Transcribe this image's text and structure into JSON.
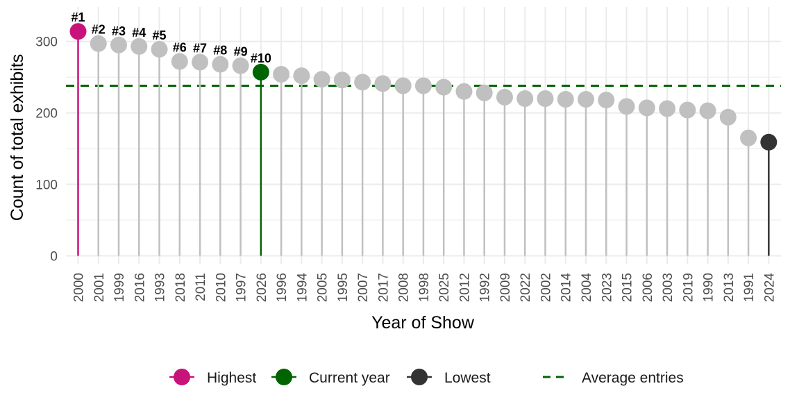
{
  "chart_data": {
    "type": "lollipop",
    "xlabel": "Year of Show",
    "ylabel": "Count of total exhibits",
    "ylim": [
      0,
      320
    ],
    "yticks": [
      0,
      100,
      200,
      300
    ],
    "average": 238,
    "categories": [
      "2000",
      "2001",
      "1999",
      "2016",
      "1993",
      "2018",
      "2011",
      "2010",
      "1997",
      "2026",
      "1996",
      "1994",
      "2005",
      "1995",
      "2007",
      "2017",
      "2008",
      "1998",
      "2025",
      "2012",
      "1992",
      "2009",
      "2022",
      "2002",
      "2014",
      "2004",
      "2023",
      "2015",
      "2006",
      "2003",
      "2019",
      "1990",
      "2013",
      "1991",
      "2024"
    ],
    "values": [
      314,
      297,
      295,
      293,
      289,
      272,
      271,
      268,
      266,
      257,
      254,
      252,
      247,
      246,
      243,
      241,
      238,
      238,
      236,
      230,
      228,
      222,
      220,
      220,
      219,
      219,
      218,
      209,
      207,
      206,
      204,
      203,
      194,
      165,
      159
    ],
    "ranks": [
      "#1",
      "#2",
      "#3",
      "#4",
      "#5",
      "#6",
      "#7",
      "#8",
      "#9",
      "#10"
    ],
    "highlights": {
      "highest": "2000",
      "current": "2026",
      "lowest": "2024"
    },
    "colors": {
      "highest": "#c8137a",
      "current": "#006400",
      "lowest": "#333333",
      "default": "#c0c0c0",
      "average": "#006400",
      "grid": "#ebebeb"
    },
    "grid": true,
    "legend": {
      "position": "bottom",
      "items": [
        {
          "key": "highest",
          "label": "Highest"
        },
        {
          "key": "current",
          "label": "Current year"
        },
        {
          "key": "lowest",
          "label": "Lowest"
        },
        {
          "key": "average",
          "label": "Average entries"
        }
      ]
    }
  }
}
